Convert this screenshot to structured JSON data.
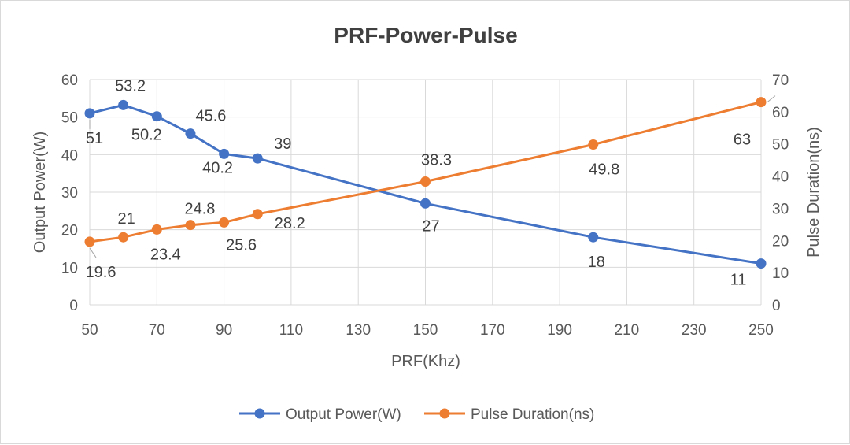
{
  "chart_data": {
    "type": "line",
    "title": "PRF-Power-Pulse",
    "xlabel": "PRF(Khz)",
    "ylabel_left": "Output Power(W)",
    "ylabel_right": "Pulse Duration(ns)",
    "xlim": [
      50,
      250
    ],
    "ylim_left": [
      0,
      60
    ],
    "ylim_right": [
      0,
      70
    ],
    "x_ticks": [
      50,
      70,
      90,
      110,
      130,
      150,
      170,
      190,
      210,
      230,
      250
    ],
    "y_left_ticks": [
      0,
      10,
      20,
      30,
      40,
      50,
      60
    ],
    "y_right_ticks": [
      0,
      10,
      20,
      30,
      40,
      50,
      60,
      70
    ],
    "grid": true,
    "legend_position": "bottom",
    "series": [
      {
        "name": "Output Power(W)",
        "axis": "left",
        "color": "#4472c4",
        "x": [
          50,
          60,
          70,
          80,
          90,
          100,
          150,
          200,
          250
        ],
        "values": [
          51,
          53.2,
          50.2,
          45.6,
          40.2,
          39,
          27,
          18,
          11
        ],
        "labels": [
          "51",
          "53.2",
          "50.2",
          "45.6",
          "40.2",
          "39",
          "27",
          "18",
          "11"
        ]
      },
      {
        "name": "Pulse Duration(ns)",
        "axis": "right",
        "color": "#ed7d31",
        "x": [
          50,
          60,
          70,
          80,
          90,
          100,
          150,
          200,
          250
        ],
        "values": [
          19.6,
          21,
          23.4,
          24.8,
          25.6,
          28.2,
          38.3,
          49.8,
          63
        ],
        "labels": [
          "19.6",
          "21",
          "23.4",
          "24.8",
          "25.6",
          "28.2",
          "38.3",
          "49.8",
          "63"
        ]
      }
    ]
  }
}
